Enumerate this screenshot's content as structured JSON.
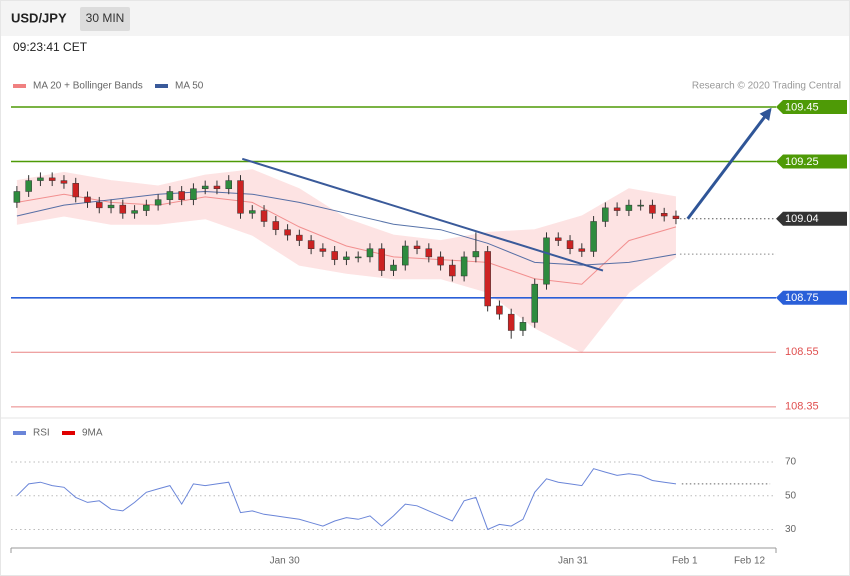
{
  "header": {
    "symbol": "USD/JPY",
    "interval": "30 MIN",
    "time": "09:23:41 CET"
  },
  "chart_data": [
    {
      "type": "candlestick",
      "credit": "Research © 2020 Trading Central",
      "x": [
        0,
        2,
        4,
        6,
        8,
        10,
        12,
        14,
        16,
        18,
        20,
        22,
        24,
        26,
        28,
        30,
        32,
        34,
        36,
        38,
        40,
        42,
        44,
        46,
        48,
        50,
        52,
        54,
        56,
        58,
        60,
        62,
        64,
        66,
        68,
        70,
        72,
        74,
        76,
        78,
        80,
        82,
        84,
        86,
        88,
        90,
        92,
        94,
        96,
        98,
        100,
        102,
        104,
        106,
        108,
        110,
        112
      ],
      "open": [
        109.1,
        109.14,
        109.18,
        109.19,
        109.18,
        109.17,
        109.12,
        109.1,
        109.08,
        109.09,
        109.06,
        109.07,
        109.09,
        109.11,
        109.14,
        109.11,
        109.15,
        109.16,
        109.15,
        109.18,
        109.06,
        109.07,
        109.03,
        109.0,
        108.98,
        108.96,
        108.93,
        108.92,
        108.89,
        108.9,
        108.9,
        108.93,
        108.85,
        108.87,
        108.94,
        108.93,
        108.9,
        108.87,
        108.83,
        108.9,
        108.92,
        108.72,
        108.69,
        108.63,
        108.66,
        108.8,
        108.97,
        108.96,
        108.93,
        108.92,
        109.03,
        109.08,
        109.07,
        109.09,
        109.09,
        109.06,
        109.05
      ],
      "high": [
        109.16,
        109.2,
        109.21,
        109.21,
        109.2,
        109.19,
        109.14,
        109.12,
        109.11,
        109.11,
        109.09,
        109.11,
        109.13,
        109.16,
        109.16,
        109.17,
        109.18,
        109.18,
        109.2,
        109.2,
        109.09,
        109.09,
        109.05,
        109.02,
        109.0,
        108.98,
        108.95,
        108.94,
        108.92,
        108.92,
        108.95,
        108.95,
        108.89,
        108.96,
        108.96,
        108.95,
        108.92,
        108.89,
        108.92,
        108.99,
        108.94,
        108.74,
        108.71,
        108.68,
        108.82,
        108.99,
        108.99,
        108.98,
        108.95,
        109.05,
        109.1,
        109.1,
        109.11,
        109.11,
        109.11,
        109.08,
        109.07
      ],
      "low": [
        109.08,
        109.12,
        109.16,
        109.16,
        109.15,
        109.1,
        109.08,
        109.06,
        109.06,
        109.04,
        109.04,
        109.05,
        109.07,
        109.09,
        109.09,
        109.09,
        109.13,
        109.13,
        109.13,
        109.04,
        109.04,
        109.01,
        108.98,
        108.96,
        108.94,
        108.91,
        108.9,
        108.87,
        108.87,
        108.88,
        108.88,
        108.83,
        108.83,
        108.85,
        108.91,
        108.88,
        108.85,
        108.81,
        108.81,
        108.88,
        108.7,
        108.67,
        108.6,
        108.61,
        108.64,
        108.78,
        108.94,
        108.91,
        108.9,
        108.9,
        109.01,
        109.05,
        109.05,
        109.07,
        109.04,
        109.03,
        109.02
      ],
      "close": [
        109.14,
        109.18,
        109.19,
        109.18,
        109.17,
        109.12,
        109.1,
        109.08,
        109.09,
        109.06,
        109.07,
        109.09,
        109.11,
        109.14,
        109.11,
        109.15,
        109.16,
        109.15,
        109.18,
        109.06,
        109.07,
        109.03,
        109.0,
        108.98,
        108.96,
        108.93,
        108.92,
        108.89,
        108.9,
        108.9,
        108.93,
        108.85,
        108.87,
        108.94,
        108.93,
        108.9,
        108.87,
        108.83,
        108.9,
        108.92,
        108.72,
        108.69,
        108.63,
        108.66,
        108.8,
        108.97,
        108.96,
        108.93,
        108.92,
        109.03,
        109.08,
        109.07,
        109.09,
        109.09,
        109.06,
        109.05,
        109.04
      ],
      "up_color": "#2e8b3e",
      "down_color": "#cc2222",
      "xlim": [
        -1,
        129
      ],
      "ylim": [
        108.32,
        109.494
      ],
      "overlays": [
        {
          "name": "MA 20 + Bollinger Bands",
          "color": "#f08080",
          "band_color": "#fde3e3",
          "x": [
            0,
            8,
            16,
            24,
            32,
            40,
            48,
            56,
            64,
            72,
            80,
            88,
            96,
            104,
            112
          ],
          "values": [
            109.1,
            109.13,
            109.1,
            109.09,
            109.12,
            109.1,
            109.01,
            108.94,
            108.9,
            108.89,
            108.88,
            108.82,
            108.8,
            108.96,
            109.01
          ],
          "upper": [
            109.18,
            109.21,
            109.18,
            109.16,
            109.2,
            109.22,
            109.15,
            109.04,
            108.98,
            108.96,
            108.99,
            109.0,
            109.05,
            109.15,
            109.12
          ],
          "lower": [
            109.02,
            109.05,
            109.02,
            109.02,
            109.04,
            108.98,
            108.87,
            108.84,
            108.82,
            108.82,
            108.77,
            108.64,
            108.55,
            108.77,
            108.9
          ]
        },
        {
          "name": "MA 50",
          "color": "#3a5a9a",
          "x": [
            0,
            8,
            16,
            24,
            32,
            40,
            48,
            56,
            64,
            72,
            80,
            88,
            96,
            104,
            112
          ],
          "values": [
            109.05,
            109.09,
            109.11,
            109.13,
            109.14,
            109.13,
            109.1,
            109.06,
            109.02,
            109.0,
            108.95,
            108.88,
            108.87,
            108.88,
            108.91
          ]
        }
      ],
      "levels": [
        {
          "value": 109.45,
          "color": "#4e9a06",
          "style": "box",
          "line": "solid"
        },
        {
          "value": 109.25,
          "color": "#4e9a06",
          "style": "box",
          "line": "solid"
        },
        {
          "value": 109.04,
          "color": "#333333",
          "style": "box",
          "line": "dotted"
        },
        {
          "value": 108.75,
          "color": "#2a5fd8",
          "style": "box",
          "line": "solid"
        },
        {
          "value": 108.55,
          "color": "#e05050",
          "style": "text",
          "line": "solid"
        },
        {
          "value": 108.35,
          "color": "#e05050",
          "style": "text",
          "line": "solid"
        }
      ],
      "trend_lines": [
        {
          "x": [
            38.3,
            99.6
          ],
          "y": [
            109.26,
            108.85
          ],
          "color": "#3a5a9a"
        }
      ],
      "arrow": {
        "x": [
          114,
          128
        ],
        "y": [
          109.04,
          109.44
        ],
        "color": "#2f5597"
      }
    },
    {
      "type": "line",
      "x": [
        0,
        2,
        4,
        6,
        8,
        10,
        12,
        14,
        16,
        18,
        20,
        22,
        24,
        26,
        28,
        30,
        32,
        34,
        36,
        38,
        40,
        42,
        44,
        46,
        48,
        50,
        52,
        54,
        56,
        58,
        60,
        62,
        64,
        66,
        68,
        70,
        72,
        74,
        76,
        78,
        80,
        82,
        84,
        86,
        88,
        90,
        92,
        94,
        96,
        98,
        100,
        102,
        104,
        106,
        108,
        110,
        112
      ],
      "xlim": [
        -1,
        129
      ],
      "ylim": [
        19,
        83
      ],
      "yticks": [
        30,
        50,
        70
      ],
      "xticks": [
        {
          "value": 45.5,
          "label": "Jan 30"
        },
        {
          "value": 94.5,
          "label": "Jan 31"
        },
        {
          "value": 113.5,
          "label": "Feb 1"
        },
        {
          "value": 124.5,
          "label": "Feb 12"
        }
      ],
      "series": [
        {
          "name": "RSI",
          "color": "#6a85d8",
          "values": [
            50,
            57,
            58,
            56,
            55,
            49,
            46,
            47,
            42,
            41,
            46,
            52,
            54,
            56,
            45,
            57,
            56,
            57,
            58,
            40,
            41,
            39,
            38,
            37,
            36,
            34,
            32,
            35,
            37,
            36,
            38,
            32,
            38,
            45,
            44,
            41,
            38,
            35,
            47,
            49,
            30,
            33,
            32,
            36,
            52,
            60,
            58,
            57,
            56,
            66,
            64,
            62,
            63,
            62,
            59,
            58,
            57
          ]
        },
        {
          "name": "9MA",
          "color": "#e00000",
          "x": [
            113,
            128
          ],
          "values": [
            57,
            57
          ]
        }
      ]
    }
  ]
}
